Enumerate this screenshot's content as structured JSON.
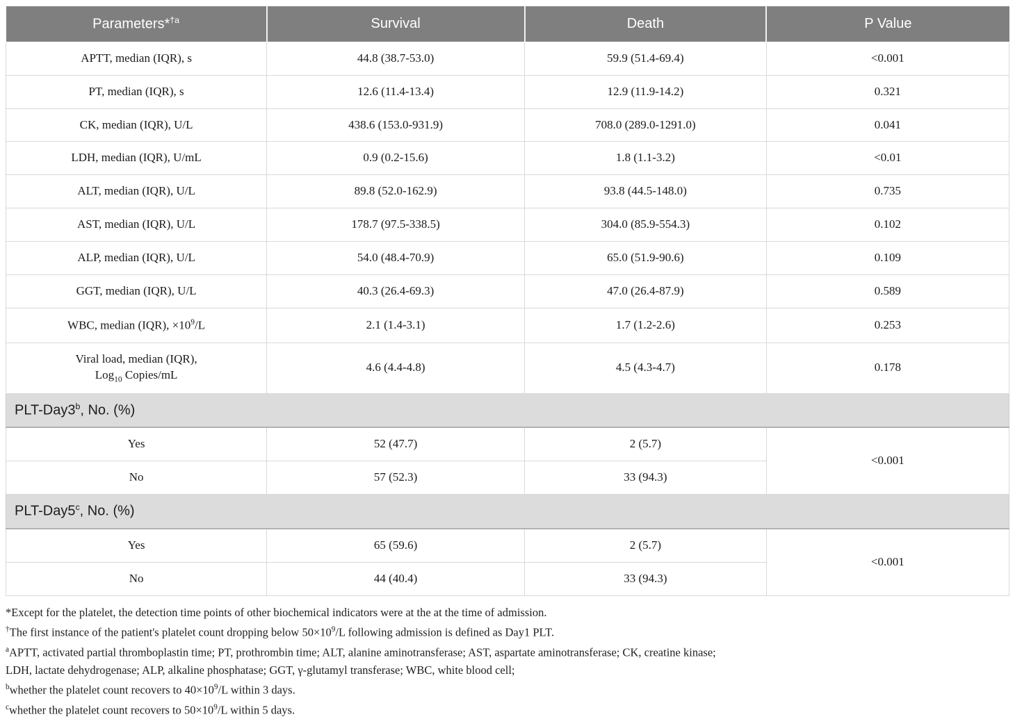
{
  "colors": {
    "header_background": "#7f7f7f",
    "header_text": "#ffffff",
    "section_band_background": "#dcdcdc",
    "section_band_bottom_border": "#b1b1b1",
    "row_border": "#d9d9d9",
    "body_text": "#1a1a1a",
    "page_background": "#ffffff"
  },
  "table": {
    "header": {
      "parameters_parts": [
        {
          "t": "Parameters*"
        },
        {
          "t": "†a",
          "s": "sup"
        }
      ],
      "survival": "Survival",
      "death": "Death",
      "p_value": "P Value"
    },
    "rows": [
      {
        "parameter_parts": [
          {
            "t": "APTT, median (IQR), s"
          }
        ],
        "survival": "44.8 (38.7-53.0)",
        "death": "59.9 (51.4-69.4)",
        "p": "<0.001"
      },
      {
        "parameter_parts": [
          {
            "t": "PT, median (IQR), s"
          }
        ],
        "survival": "12.6 (11.4-13.4)",
        "death": "12.9 (11.9-14.2)",
        "p": "0.321"
      },
      {
        "parameter_parts": [
          {
            "t": "CK, median (IQR), U/L"
          }
        ],
        "survival": "438.6 (153.0-931.9)",
        "death": "708.0 (289.0-1291.0)",
        "p": "0.041"
      },
      {
        "parameter_parts": [
          {
            "t": "LDH, median (IQR), U/mL"
          }
        ],
        "survival": "0.9 (0.2-15.6)",
        "death": "1.8 (1.1-3.2)",
        "p": "<0.01"
      },
      {
        "parameter_parts": [
          {
            "t": "ALT, median (IQR), U/L"
          }
        ],
        "survival": "89.8 (52.0-162.9)",
        "death": "93.8 (44.5-148.0)",
        "p": "0.735"
      },
      {
        "parameter_parts": [
          {
            "t": "AST, median (IQR), U/L"
          }
        ],
        "survival": "178.7 (97.5-338.5)",
        "death": "304.0 (85.9-554.3)",
        "p": "0.102"
      },
      {
        "parameter_parts": [
          {
            "t": "ALP, median (IQR), U/L"
          }
        ],
        "survival": "54.0 (48.4-70.9)",
        "death": "65.0 (51.9-90.6)",
        "p": "0.109"
      },
      {
        "parameter_parts": [
          {
            "t": "GGT, median (IQR), U/L"
          }
        ],
        "survival": "40.3 (26.4-69.3)",
        "death": "47.0 (26.4-87.9)",
        "p": "0.589"
      },
      {
        "parameter_parts": [
          {
            "t": "WBC, median (IQR), ×10"
          },
          {
            "t": "9",
            "s": "sup"
          },
          {
            "t": "/L"
          }
        ],
        "survival": "2.1 (1.4-3.1)",
        "death": "1.7 (1.2-2.6)",
        "p": "0.253"
      },
      {
        "parameter_parts": [
          {
            "t": "Viral load, median (IQR),"
          },
          {
            "s": "br"
          },
          {
            "t": "Log"
          },
          {
            "t": "10",
            "s": "sub"
          },
          {
            "t": " Copies/mL"
          }
        ],
        "survival": "4.6 (4.4-4.8)",
        "death": "4.5 (4.3-4.7)",
        "p": "0.178"
      }
    ],
    "sections": [
      {
        "title_parts": [
          {
            "t": "PLT-Day3"
          },
          {
            "t": "b",
            "s": "sup"
          },
          {
            "t": ", No. (%)"
          }
        ],
        "rows": [
          {
            "label": "Yes",
            "survival": "52 (47.7)",
            "death": "2 (5.7)"
          },
          {
            "label": "No",
            "survival": "57 (52.3)",
            "death": "33 (94.3)"
          }
        ],
        "p": "<0.001"
      },
      {
        "title_parts": [
          {
            "t": "PLT-Day5"
          },
          {
            "t": "c",
            "s": "sup"
          },
          {
            "t": ", No. (%)"
          }
        ],
        "rows": [
          {
            "label": "Yes",
            "survival": "65 (59.6)",
            "death": "2 (5.7)"
          },
          {
            "label": "No",
            "survival": "44 (40.4)",
            "death": "33 (94.3)"
          }
        ],
        "p": "<0.001"
      }
    ]
  },
  "footnotes": [
    {
      "parts": [
        {
          "t": "*Except for the platelet, the detection time points of other biochemical indicators were at the at the time of admission."
        }
      ]
    },
    {
      "parts": [
        {
          "t": "†",
          "s": "sup"
        },
        {
          "t": "The first instance of the patient's platelet count dropping below 50×10"
        },
        {
          "t": "9",
          "s": "sup"
        },
        {
          "t": "/L following admission is defined as Day1 PLT."
        }
      ]
    },
    {
      "parts": [
        {
          "t": "a",
          "s": "sup"
        },
        {
          "t": "APTT, activated partial thromboplastin time; PT, prothrombin time; ALT, alanine aminotransferase; AST, aspartate aminotransferase; CK, creatine kinase;"
        }
      ]
    },
    {
      "parts": [
        {
          "t": "LDH, lactate dehydrogenase; ALP, alkaline phosphatase; GGT, γ-glutamyl transferase; WBC, white blood cell;"
        }
      ]
    },
    {
      "parts": [
        {
          "t": "b",
          "s": "sup"
        },
        {
          "t": "whether the platelet count recovers to 40×10"
        },
        {
          "t": "9",
          "s": "sup"
        },
        {
          "t": "/L within 3 days."
        }
      ]
    },
    {
      "parts": [
        {
          "t": "c",
          "s": "sup"
        },
        {
          "t": "whether the platelet count recovers to 50×10"
        },
        {
          "t": "9",
          "s": "sup"
        },
        {
          "t": "/L within 5 days."
        }
      ]
    }
  ]
}
